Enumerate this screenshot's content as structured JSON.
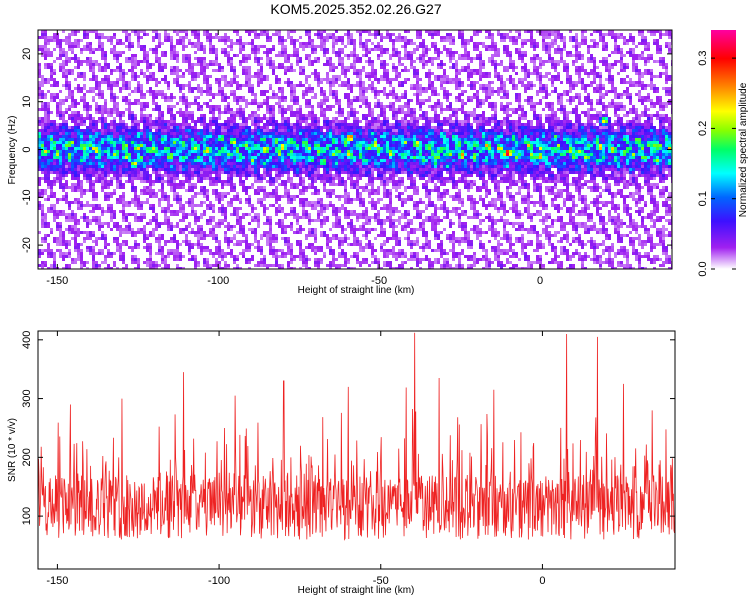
{
  "title": "KOM5.2025.352.02.26.G27",
  "colors": {
    "snr_line": "#ee2222",
    "colormap": [
      "#ffffff",
      "#a020f0",
      "#3d10ff",
      "#0066ff",
      "#00ffff",
      "#00ff66",
      "#88ff00",
      "#ffff00",
      "#ff8800",
      "#ff0000",
      "#ff00a0"
    ]
  },
  "chart_data": [
    {
      "type": "heatmap",
      "name": "spectrogram",
      "xlabel": "Height of straight line (km)",
      "ylabel": "Frequency (Hz)",
      "xlim": [
        -156,
        41
      ],
      "ylim": [
        -25,
        25
      ],
      "x_ticks": [
        -150,
        -100,
        -50,
        0
      ],
      "y_ticks": [
        -20,
        -10,
        0,
        10,
        20
      ],
      "colorbar": {
        "label": "Normalized spectral amplitude",
        "range": [
          0,
          0.34
        ],
        "ticks": [
          0.0,
          0.1,
          0.2,
          0.3
        ],
        "tick_labels": [
          "0.0",
          "0.1",
          "0.2",
          "0.3"
        ]
      },
      "features": {
        "signal_band_center_hz": 0,
        "signal_band_halfwidth_hz": 4,
        "background_level": 0.03,
        "band_level": 0.12,
        "peak_level": 0.34,
        "hotspots": [
          {
            "x": -126,
            "y": -3,
            "v": 0.24
          },
          {
            "x": -80,
            "y": 0.5,
            "v": 0.26
          },
          {
            "x": -59,
            "y": 2.5,
            "v": 0.3
          },
          {
            "x": -32,
            "y": -1.5,
            "v": 0.22
          },
          {
            "x": -10,
            "y": -0.8,
            "v": 0.34
          },
          {
            "x": 0,
            "y": -1.5,
            "v": 0.26
          },
          {
            "x": 20,
            "y": 6,
            "v": 0.24
          },
          {
            "x": 36,
            "y": 1,
            "v": 0.22
          },
          {
            "x": -140,
            "y": 1,
            "v": 0.2
          },
          {
            "x": -104,
            "y": -0.5,
            "v": 0.2
          },
          {
            "x": 12,
            "y": -0.5,
            "v": 0.22
          }
        ]
      }
    },
    {
      "type": "line",
      "name": "snr",
      "xlabel": "Height of straight line (km)",
      "ylabel": "SNR (10 * v/v)",
      "xlim": [
        -156,
        41
      ],
      "ylim": [
        10,
        415
      ],
      "x_ticks": [
        -150,
        -100,
        -50,
        0
      ],
      "y_ticks": [
        100,
        200,
        300,
        400
      ],
      "mean_snr": 115,
      "n_samples": 1200,
      "peaks": [
        {
          "x": -39.5,
          "y": 412
        },
        {
          "x": 7.5,
          "y": 410
        },
        {
          "x": 17,
          "y": 405
        },
        {
          "x": -111,
          "y": 345
        },
        {
          "x": -80,
          "y": 330
        },
        {
          "x": -32,
          "y": 335
        },
        {
          "x": 25,
          "y": 325
        },
        {
          "x": -146,
          "y": 290
        },
        {
          "x": -130,
          "y": 300
        },
        {
          "x": -95,
          "y": 305
        },
        {
          "x": -60,
          "y": 320
        },
        {
          "x": -15,
          "y": 315
        },
        {
          "x": 34,
          "y": 280
        }
      ]
    }
  ]
}
